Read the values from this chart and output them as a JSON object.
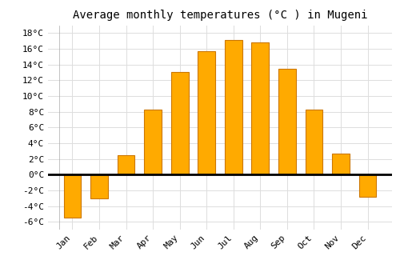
{
  "title": "Average monthly temperatures (°C ) in Mugeni",
  "months": [
    "Jan",
    "Feb",
    "Mar",
    "Apr",
    "May",
    "Jun",
    "Jul",
    "Aug",
    "Sep",
    "Oct",
    "Nov",
    "Dec"
  ],
  "values": [
    -5.5,
    -3.0,
    2.5,
    8.3,
    13.0,
    15.7,
    17.1,
    16.8,
    13.5,
    8.3,
    2.7,
    -2.8
  ],
  "bar_color": "#FFAA00",
  "bar_edge_color": "#CC7700",
  "background_color": "#FFFFFF",
  "grid_color": "#DDDDDD",
  "ylim": [
    -7,
    19
  ],
  "yticks": [
    -6,
    -4,
    -2,
    0,
    2,
    4,
    6,
    8,
    10,
    12,
    14,
    16,
    18
  ],
  "ytick_labels": [
    "-6°C",
    "-4°C",
    "-2°C",
    "0°C",
    "2°C",
    "4°C",
    "6°C",
    "8°C",
    "10°C",
    "12°C",
    "14°C",
    "16°C",
    "18°C"
  ],
  "title_fontsize": 10,
  "tick_fontsize": 8,
  "font_family": "monospace"
}
